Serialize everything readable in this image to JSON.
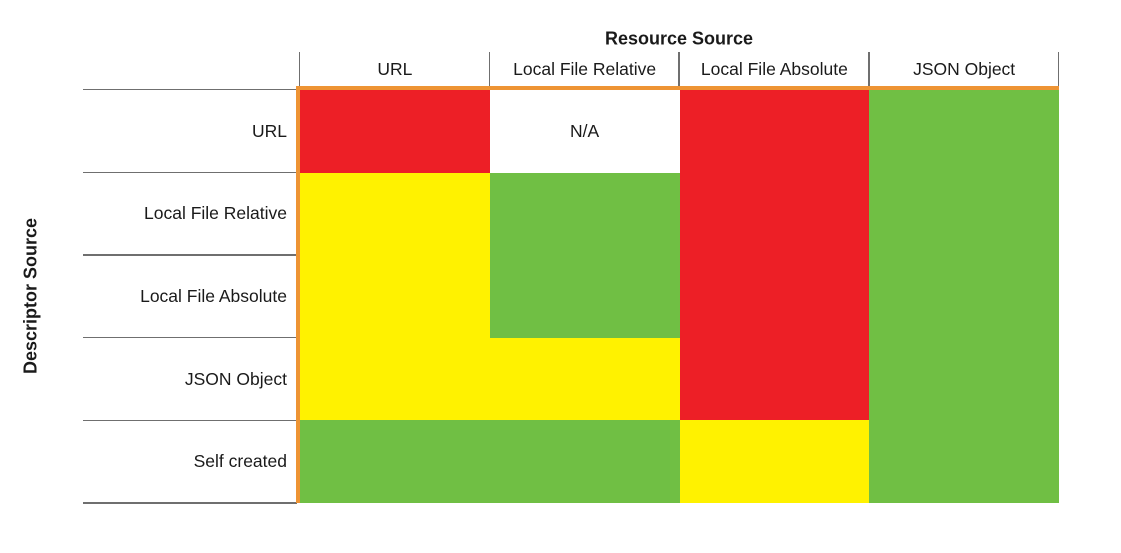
{
  "chart_data": {
    "type": "heatmap",
    "title": "Resource Source",
    "row_axis_label": "Descriptor Source",
    "columns": [
      "URL",
      "Local File Relative",
      "Local File Absolute",
      "JSON Object"
    ],
    "rows": [
      "URL",
      "Local File Relative",
      "Local File Absolute",
      "JSON Object",
      "Self created"
    ],
    "cell_colors": [
      [
        "red",
        "na",
        "red",
        "green"
      ],
      [
        "yellow",
        "green",
        "red",
        "green"
      ],
      [
        "yellow",
        "green",
        "red",
        "green"
      ],
      [
        "yellow",
        "yellow",
        "red",
        "green"
      ],
      [
        "green",
        "green",
        "yellow",
        "green"
      ]
    ],
    "cell_labels": [
      [
        "",
        "N/A",
        "",
        ""
      ],
      [
        "",
        "",
        "",
        ""
      ],
      [
        "",
        "",
        "",
        ""
      ],
      [
        "",
        "",
        "",
        ""
      ],
      [
        "",
        "",
        "",
        ""
      ]
    ],
    "legend_position": "none",
    "grid": "off"
  },
  "colors": {
    "red": "#ed1f26",
    "yellow": "#fff200",
    "green": "#70bf44",
    "na": "#ffffff",
    "axis_border": "#ee9434",
    "grid_line": "#6f6f6f",
    "text": "#1a1a1a"
  }
}
